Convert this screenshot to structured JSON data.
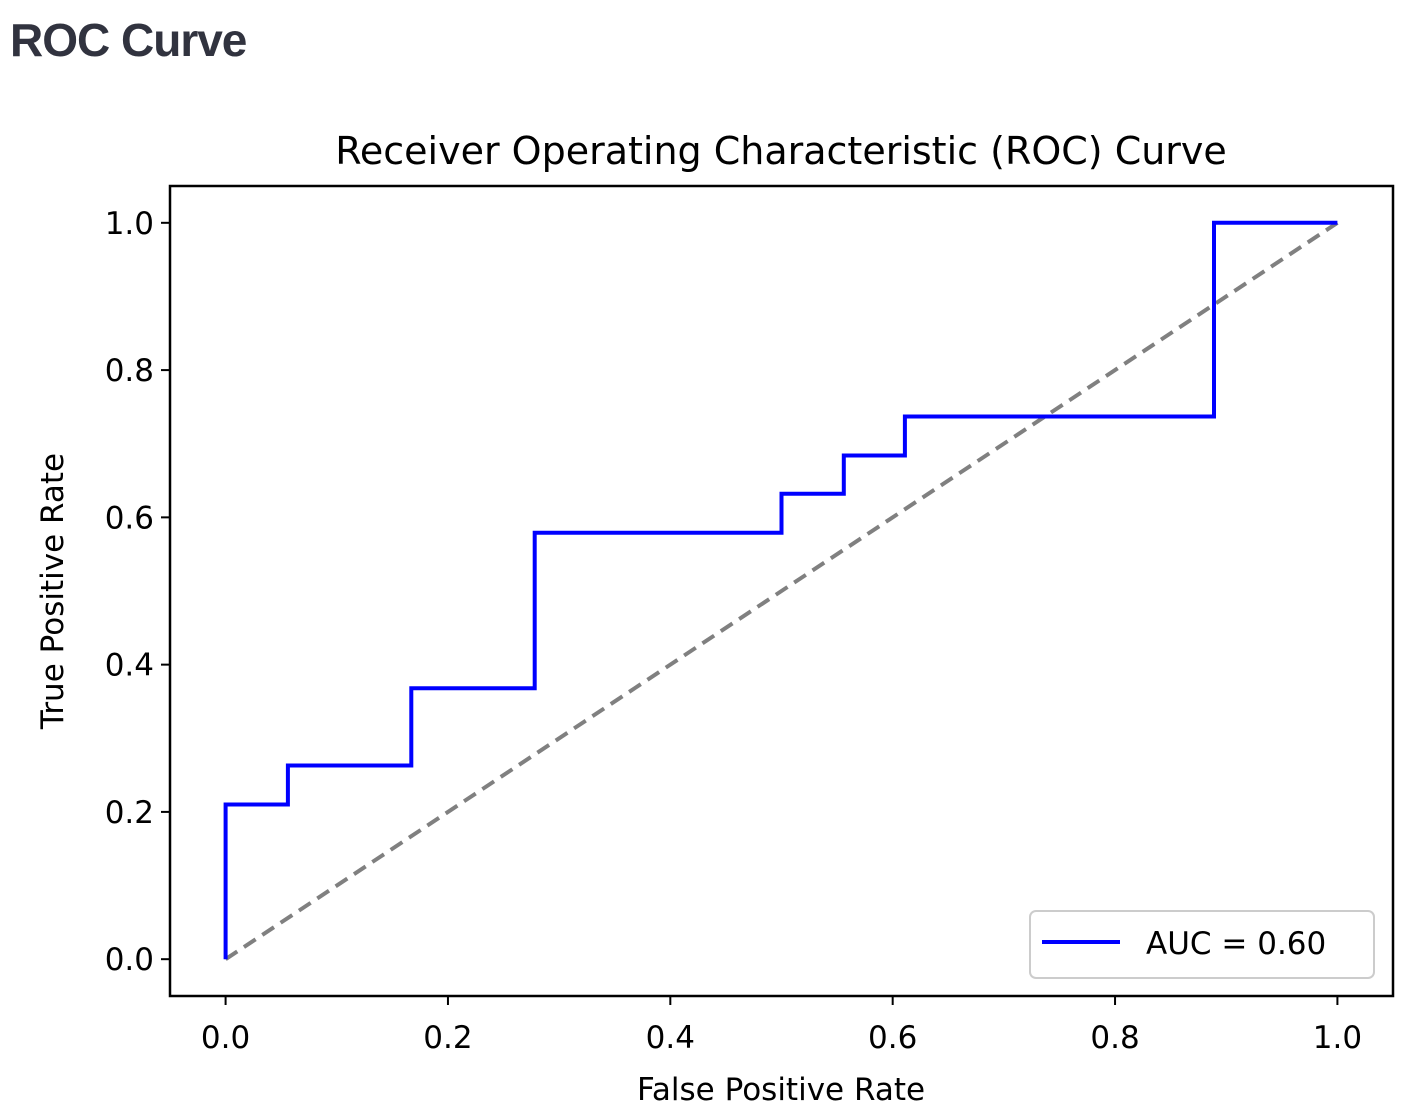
{
  "page": {
    "heading": "ROC Curve"
  },
  "chart_data": {
    "type": "line",
    "title": "Receiver Operating Characteristic (ROC) Curve",
    "xlabel": "False Positive Rate",
    "ylabel": "True Positive Rate",
    "xlim": [
      -0.05,
      1.05
    ],
    "ylim": [
      -0.05,
      1.05
    ],
    "xticks": [
      0.0,
      0.2,
      0.4,
      0.6,
      0.8,
      1.0
    ],
    "xtick_labels": [
      "0.0",
      "0.2",
      "0.4",
      "0.6",
      "0.8",
      "1.0"
    ],
    "yticks": [
      0.0,
      0.2,
      0.4,
      0.6,
      0.8,
      1.0
    ],
    "ytick_labels": [
      "0.0",
      "0.2",
      "0.4",
      "0.6",
      "0.8",
      "1.0"
    ],
    "grid": false,
    "legend_position": "lower-right",
    "series": [
      {
        "name": "AUC = 0.60",
        "color": "#0000ff",
        "style": "solid",
        "x": [
          0.0,
          0.0,
          0.056,
          0.056,
          0.167,
          0.167,
          0.278,
          0.278,
          0.5,
          0.5,
          0.556,
          0.556,
          0.611,
          0.611,
          0.889,
          0.889,
          1.0
        ],
        "y": [
          0.0,
          0.21,
          0.21,
          0.263,
          0.263,
          0.368,
          0.368,
          0.579,
          0.579,
          0.632,
          0.632,
          0.684,
          0.684,
          0.737,
          0.737,
          1.0,
          1.0
        ]
      },
      {
        "name": "",
        "color": "#808080",
        "style": "dashed",
        "x": [
          0.0,
          1.0
        ],
        "y": [
          0.0,
          1.0
        ]
      }
    ]
  }
}
